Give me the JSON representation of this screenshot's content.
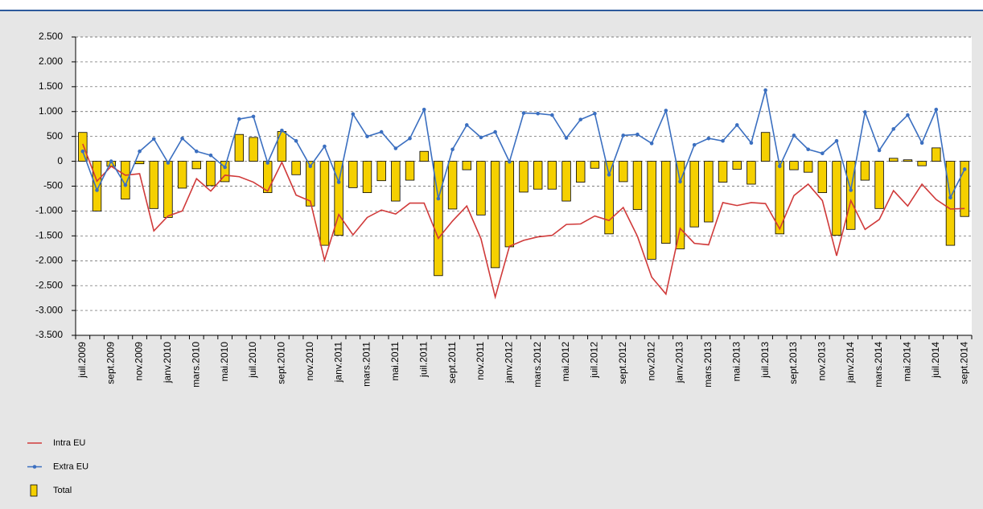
{
  "chart_data": {
    "type": "combo",
    "categories": [
      "juil.2009",
      null,
      "sept.2009",
      null,
      "nov.2009",
      null,
      "janv.2010",
      null,
      "mars.2010",
      null,
      "mai.2010",
      null,
      "juil.2010",
      null,
      "sept.2010",
      null,
      "nov.2010",
      null,
      "janv.2011",
      null,
      "mars.2011",
      null,
      "mai.2011",
      null,
      "juil.2011",
      null,
      "sept.2011",
      null,
      "nov.2011",
      null,
      "janv.2012",
      null,
      "mars.2012",
      null,
      "mai.2012",
      null,
      "juil.2012",
      null,
      "sept.2012",
      null,
      "nov.2012",
      null,
      "janv.2013",
      null,
      "mars.2013",
      null,
      "mai.2013",
      null,
      "juil.2013",
      null,
      "sept.2013",
      null,
      "nov.2013",
      null,
      "janv.2014",
      null,
      "mars.2014",
      null,
      "mai.2014",
      null,
      "juil.2014",
      null,
      "sept.2014"
    ],
    "series": [
      {
        "name": "Intra EU",
        "type": "line",
        "color": "#d03a3a",
        "markers": false,
        "values": [
          350,
          -400,
          -100,
          -280,
          -250,
          -1400,
          -1100,
          -1000,
          -350,
          -600,
          -280,
          -310,
          -420,
          -600,
          -20,
          -680,
          -800,
          -1990,
          -1070,
          -1480,
          -1130,
          -980,
          -1060,
          -840,
          -840,
          -1550,
          -1200,
          -900,
          -1560,
          -2730,
          -1710,
          -1590,
          -1520,
          -1490,
          -1270,
          -1260,
          -1100,
          -1190,
          -930,
          -1510,
          -2330,
          -2670,
          -1350,
          -1650,
          -1680,
          -830,
          -890,
          -830,
          -850,
          -1360,
          -690,
          -460,
          -790,
          -1900,
          -790,
          -1370,
          -1170,
          -590,
          -900,
          -460,
          -770,
          -960,
          -950
        ]
      },
      {
        "name": "Extra EU",
        "type": "line",
        "color": "#3b6fc0",
        "markers": true,
        "values": [
          200,
          -580,
          0,
          -480,
          200,
          450,
          -30,
          460,
          200,
          120,
          -120,
          850,
          900,
          -30,
          620,
          410,
          -100,
          300,
          -420,
          950,
          500,
          590,
          260,
          460,
          1040,
          -750,
          240,
          730,
          480,
          590,
          -10,
          970,
          960,
          930,
          470,
          840,
          960,
          -270,
          520,
          540,
          360,
          1020,
          -410,
          330,
          460,
          410,
          730,
          370,
          1430,
          -100,
          520,
          240,
          160,
          410,
          -580,
          990,
          220,
          650,
          930,
          370,
          1040,
          -730,
          -160
        ]
      },
      {
        "name": "Total",
        "type": "bar",
        "color": "#f5d000",
        "markers": false,
        "values": [
          580,
          -1000,
          -100,
          -760,
          -50,
          -950,
          -1130,
          -540,
          -150,
          -490,
          -410,
          540,
          480,
          -630,
          600,
          -270,
          -900,
          -1690,
          -1490,
          -530,
          -630,
          -390,
          -800,
          -380,
          200,
          -2300,
          -960,
          -170,
          -1080,
          -2140,
          -1720,
          -620,
          -560,
          -560,
          -800,
          -420,
          -140,
          -1460,
          -410,
          -970,
          -1970,
          -1650,
          -1760,
          -1320,
          -1220,
          -420,
          -160,
          -460,
          580,
          -1460,
          -170,
          -220,
          -630,
          -1490,
          -1370,
          -380,
          -950,
          60,
          30,
          -90,
          270,
          -1690,
          -1110
        ]
      }
    ],
    "ylim": [
      -3500,
      2500
    ],
    "yticks": [
      {
        "value": -3500,
        "label": "-3.500"
      },
      {
        "value": -3000,
        "label": "-3.000"
      },
      {
        "value": -2500,
        "label": "-2.500"
      },
      {
        "value": -2000,
        "label": "-2.000"
      },
      {
        "value": -1500,
        "label": "-1.500"
      },
      {
        "value": -1000,
        "label": "-1.000"
      },
      -500,
      0,
      500,
      {
        "value": 1000,
        "label": "1.000"
      },
      {
        "value": 1500,
        "label": "1.500"
      },
      {
        "value": 2000,
        "label": "2.000"
      },
      {
        "value": 2500,
        "label": "2.500"
      }
    ],
    "grid": true
  }
}
